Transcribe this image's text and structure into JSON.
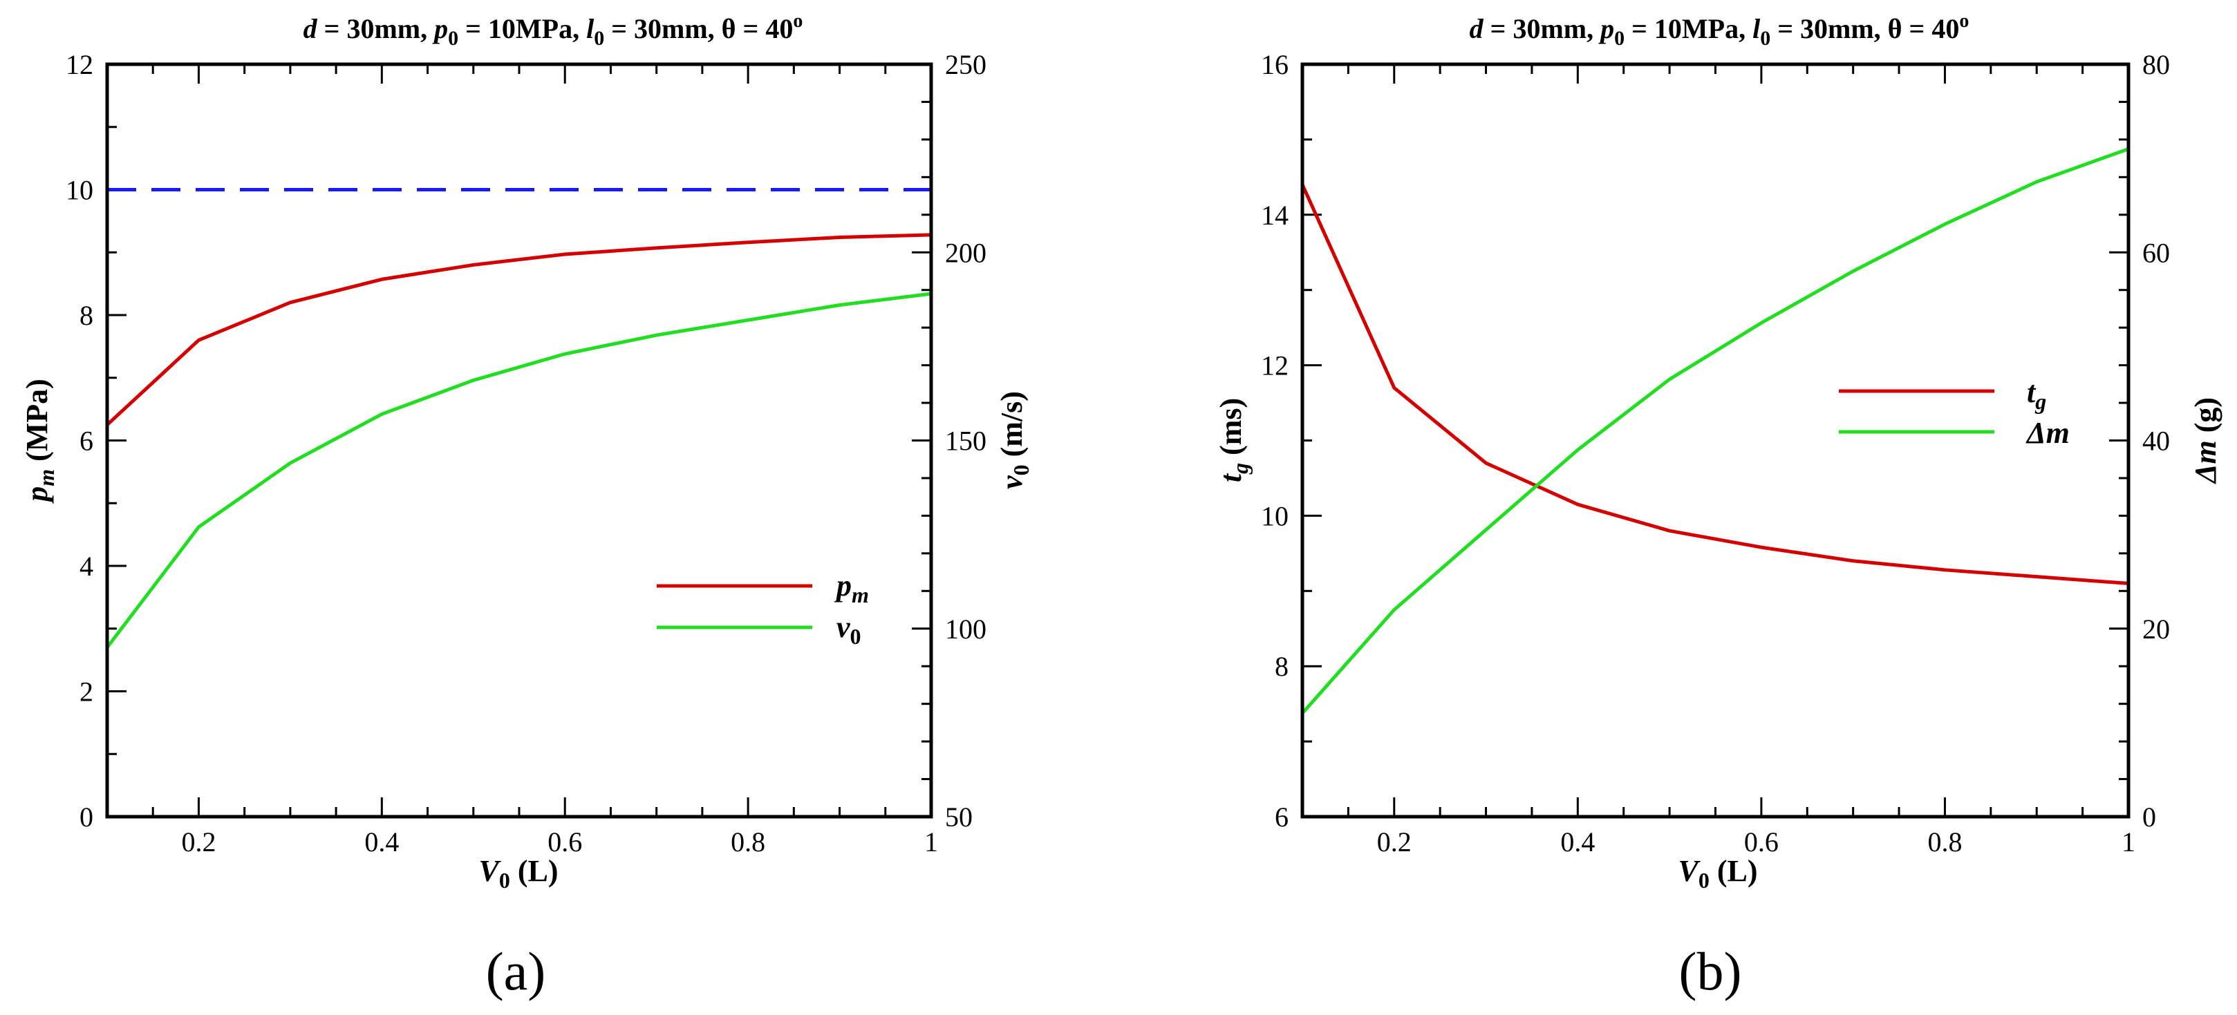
{
  "colors": {
    "red": "#d40000",
    "green": "#22dd22",
    "blue": "#1a1aff",
    "axis": "#000000"
  },
  "chart_data": [
    {
      "panel_label": "(a)",
      "type": "line",
      "title": {
        "d_sym": "d",
        "d_val": " = 30mm, ",
        "p_sym": "p",
        "p_sub": "0",
        "p_val": " = 10MPa, ",
        "l_sym": "l",
        "l_sub": "0",
        "l_val": " = 30mm, ",
        "theta": "θ = 40",
        "theta_sup": "o"
      },
      "xlabel": {
        "sym": "V",
        "sub": "0",
        "unit": " (L)"
      },
      "ylabel_left": {
        "sym": "p",
        "sub": "m",
        "unit": " (MPa)"
      },
      "ylabel_right": {
        "sym": "v",
        "sub": "0",
        "unit": " (m/s)"
      },
      "xlim": [
        0.1,
        1
      ],
      "ylim_left": [
        0,
        12
      ],
      "ylim_right": [
        50,
        250
      ],
      "x_ticks": [
        0.2,
        0.4,
        0.6,
        0.8,
        1
      ],
      "x_tick_labels": [
        "0.2",
        "0.4",
        "0.6",
        "0.8",
        "1"
      ],
      "y_left_ticks": [
        0,
        2,
        4,
        6,
        8,
        10,
        12
      ],
      "y_left_tick_labels": [
        "0",
        "2",
        "4",
        "6",
        "8",
        "10",
        "12"
      ],
      "y_right_ticks": [
        50,
        100,
        150,
        200,
        250
      ],
      "y_right_tick_labels": [
        "50",
        "100",
        "150",
        "200",
        "250"
      ],
      "series": [
        {
          "name": "p_m",
          "axis": "left",
          "color": "#d40000",
          "dash": false,
          "x": [
            0.1,
            0.2,
            0.3,
            0.4,
            0.5,
            0.6,
            0.7,
            0.8,
            0.9,
            1.0
          ],
          "values": [
            6.25,
            7.6,
            8.2,
            8.57,
            8.8,
            8.97,
            9.07,
            9.16,
            9.24,
            9.28
          ],
          "legend": {
            "sym": "p",
            "sub": "m"
          }
        },
        {
          "name": "v_0",
          "axis": "right",
          "color": "#22dd22",
          "dash": false,
          "x": [
            0.1,
            0.2,
            0.3,
            0.4,
            0.5,
            0.6,
            0.7,
            0.8,
            0.9,
            1.0
          ],
          "values": [
            95,
            127,
            144,
            157,
            166,
            173,
            178,
            182,
            186,
            189
          ],
          "legend": {
            "sym": "v",
            "sub": "0"
          }
        },
        {
          "name": "p_0 reference",
          "axis": "left",
          "color": "#1a1aff",
          "dash": true,
          "x": [
            0.1,
            1.0
          ],
          "values": [
            10,
            10
          ]
        }
      ],
      "legend_position": "lower-right"
    },
    {
      "panel_label": "(b)",
      "type": "line",
      "title": {
        "d_sym": "d",
        "d_val": " = 30mm, ",
        "p_sym": "p",
        "p_sub": "0",
        "p_val": " = 10MPa, ",
        "l_sym": "l",
        "l_sub": "0",
        "l_val": " = 30mm, ",
        "theta": "θ = 40",
        "theta_sup": "o"
      },
      "xlabel": {
        "sym": "V",
        "sub": "0",
        "unit": " (L)"
      },
      "ylabel_left": {
        "sym": "t",
        "sub": "g",
        "unit": " (ms)"
      },
      "ylabel_right": {
        "sym": "Δm",
        "sub": "",
        "unit": " (g)"
      },
      "xlim": [
        0.1,
        1
      ],
      "ylim_left": [
        6,
        16
      ],
      "ylim_right": [
        0,
        80
      ],
      "x_ticks": [
        0.2,
        0.4,
        0.6,
        0.8,
        1
      ],
      "x_tick_labels": [
        "0.2",
        "0.4",
        "0.6",
        "0.8",
        "1"
      ],
      "y_left_ticks": [
        6,
        8,
        10,
        12,
        14,
        16
      ],
      "y_left_tick_labels": [
        "6",
        "8",
        "10",
        "12",
        "14",
        "16"
      ],
      "y_right_ticks": [
        0,
        20,
        40,
        60,
        80
      ],
      "y_right_tick_labels": [
        "0",
        "20",
        "40",
        "60",
        "80"
      ],
      "series": [
        {
          "name": "t_g",
          "axis": "left",
          "color": "#d40000",
          "dash": false,
          "x": [
            0.1,
            0.2,
            0.3,
            0.4,
            0.5,
            0.6,
            0.7,
            0.8,
            0.9,
            1.0
          ],
          "values": [
            14.4,
            11.7,
            10.7,
            10.15,
            9.8,
            9.58,
            9.4,
            9.28,
            9.19,
            9.1
          ],
          "legend": {
            "sym": "t",
            "sub": "g"
          }
        },
        {
          "name": "delta_m",
          "axis": "right",
          "color": "#22dd22",
          "dash": false,
          "x": [
            0.1,
            0.2,
            0.3,
            0.4,
            0.5,
            0.6,
            0.7,
            0.8,
            0.9,
            1.0
          ],
          "values": [
            11,
            22,
            30.5,
            39,
            46.5,
            52.5,
            58,
            63,
            67.5,
            71
          ],
          "legend": {
            "sym": "Δm",
            "sub": ""
          }
        }
      ],
      "legend_position": "upper-right"
    }
  ]
}
